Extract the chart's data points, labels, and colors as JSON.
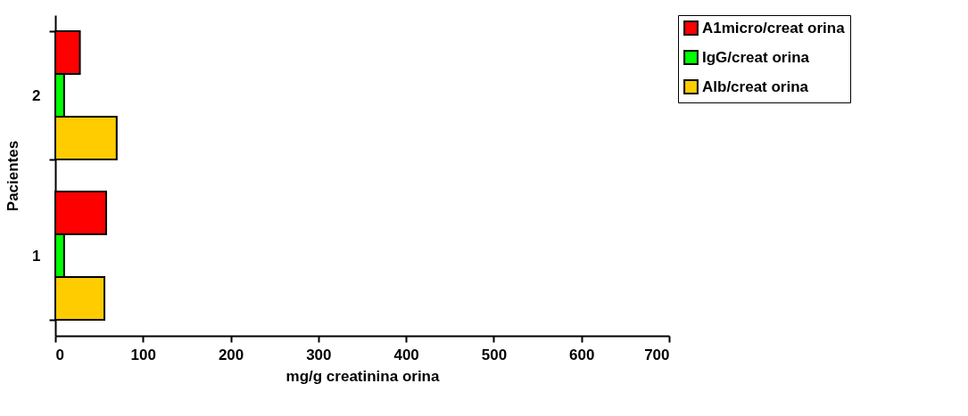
{
  "chart_data": {
    "type": "bar",
    "orientation": "horizontal",
    "categories": [
      "2",
      "1"
    ],
    "series": [
      {
        "name": "A1micro/creat orina",
        "color": "#ff0000",
        "values": [
          28,
          58
        ]
      },
      {
        "name": "IgG/creat orina",
        "color": "#00ff00",
        "values": [
          10,
          10
        ]
      },
      {
        "name": "Alb/creat orina",
        "color": "#ffcc00",
        "values": [
          70,
          56
        ]
      }
    ],
    "xlabel": "mg/g creatinina orina",
    "ylabel": "Pacientes",
    "xlim": [
      0,
      700
    ],
    "xticks": [
      0,
      100,
      200,
      300,
      400,
      500,
      600,
      700
    ],
    "grid": false,
    "legend": "right"
  }
}
